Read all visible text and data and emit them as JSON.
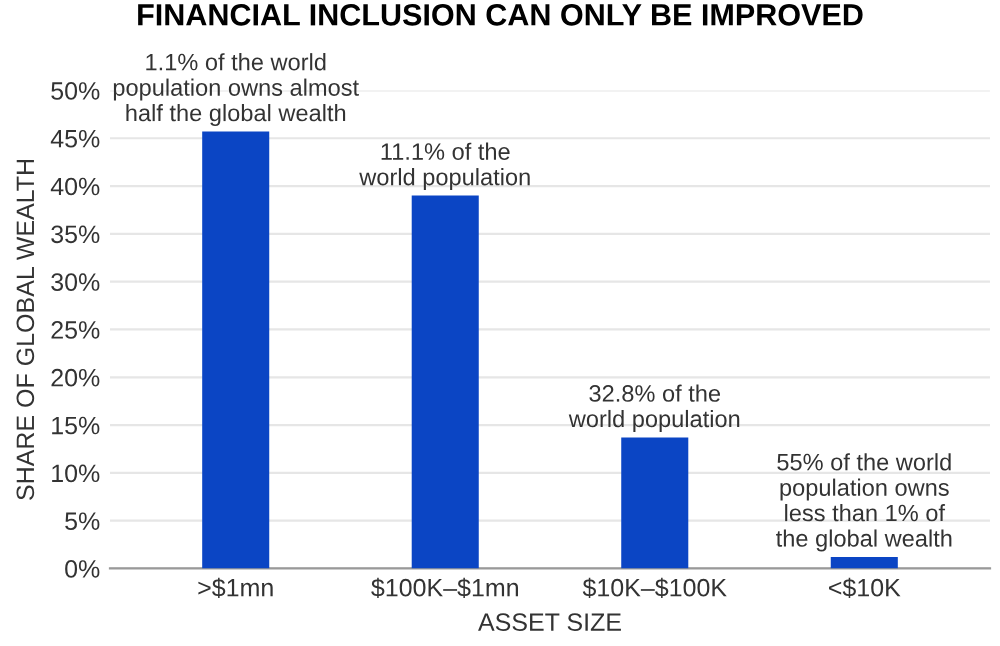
{
  "chart_data": {
    "type": "bar",
    "title": "FINANCIAL INCLUSION CAN ONLY BE IMPROVED",
    "xlabel": "ASSET SIZE",
    "ylabel": "SHARE OF GLOBAL WEALTH",
    "categories": [
      ">$1mn",
      "$100K–$1mn",
      "$10K–$100K",
      "<$10K"
    ],
    "values": [
      45.7,
      39.0,
      13.7,
      1.2
    ],
    "color": "#0b45c4",
    "ylim": [
      0,
      50
    ],
    "yticks": [
      {
        "value": 0,
        "label": "0%"
      },
      {
        "value": 5,
        "label": "5%"
      },
      {
        "value": 10,
        "label": "10%"
      },
      {
        "value": 15,
        "label": "15%"
      },
      {
        "value": 20,
        "label": "20%"
      },
      {
        "value": 25,
        "label": "25%"
      },
      {
        "value": 30,
        "label": "30%"
      },
      {
        "value": 35,
        "label": "35%"
      },
      {
        "value": 40,
        "label": "40%"
      },
      {
        "value": 45,
        "label": "45%"
      },
      {
        "value": 50,
        "label": "50%"
      }
    ],
    "grid": "y",
    "annotations": [
      {
        "text": "1.1% of the world\npopulation owns almost\nhalf the global wealth",
        "x": ">$1mn",
        "y": 45.7
      },
      {
        "text": "11.1% of the\nworld population",
        "x": "$100K–$1mn",
        "y": 39.0
      },
      {
        "text": "32.8% of the\nworld population",
        "x": "$10K–$100K",
        "y": 13.7
      },
      {
        "text": "55% of the world\npopulation owns\nless than 1% of\nthe global wealth",
        "x": "<$10K",
        "y": 1.2
      }
    ]
  }
}
